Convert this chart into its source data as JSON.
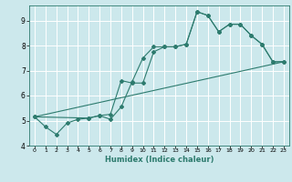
{
  "xlabel": "Humidex (Indice chaleur)",
  "bg_color": "#cce8ec",
  "grid_color": "#ffffff",
  "line_color": "#2d7b6e",
  "xlim": [
    -0.5,
    23.5
  ],
  "ylim": [
    4.0,
    9.6
  ],
  "xticks": [
    0,
    1,
    2,
    3,
    4,
    5,
    6,
    7,
    8,
    9,
    10,
    11,
    12,
    13,
    14,
    15,
    16,
    17,
    18,
    19,
    20,
    21,
    22,
    23
  ],
  "yticks": [
    4,
    5,
    6,
    7,
    8,
    9
  ],
  "series1_x": [
    0,
    1,
    2,
    3,
    4,
    5,
    6,
    7,
    8,
    9,
    10,
    11,
    12,
    13,
    14,
    15,
    16,
    17,
    18,
    19,
    20,
    21,
    22,
    23
  ],
  "series1_y": [
    5.15,
    4.75,
    4.45,
    4.9,
    5.05,
    5.1,
    5.2,
    5.05,
    5.55,
    6.55,
    7.5,
    7.95,
    7.95,
    7.95,
    8.05,
    9.35,
    9.2,
    8.55,
    8.85,
    8.85,
    8.4,
    8.05,
    7.35,
    7.35
  ],
  "series2_x": [
    0,
    5,
    6,
    7,
    8,
    9,
    10,
    11,
    12,
    13,
    14,
    15,
    16,
    17,
    18,
    19,
    20,
    21,
    22,
    23
  ],
  "series2_y": [
    5.15,
    5.1,
    5.2,
    5.25,
    6.6,
    6.5,
    6.5,
    7.75,
    7.95,
    7.95,
    8.05,
    9.35,
    9.2,
    8.55,
    8.85,
    8.85,
    8.4,
    8.05,
    7.35,
    7.35
  ],
  "series3_x": [
    0,
    23
  ],
  "series3_y": [
    5.15,
    7.35
  ]
}
